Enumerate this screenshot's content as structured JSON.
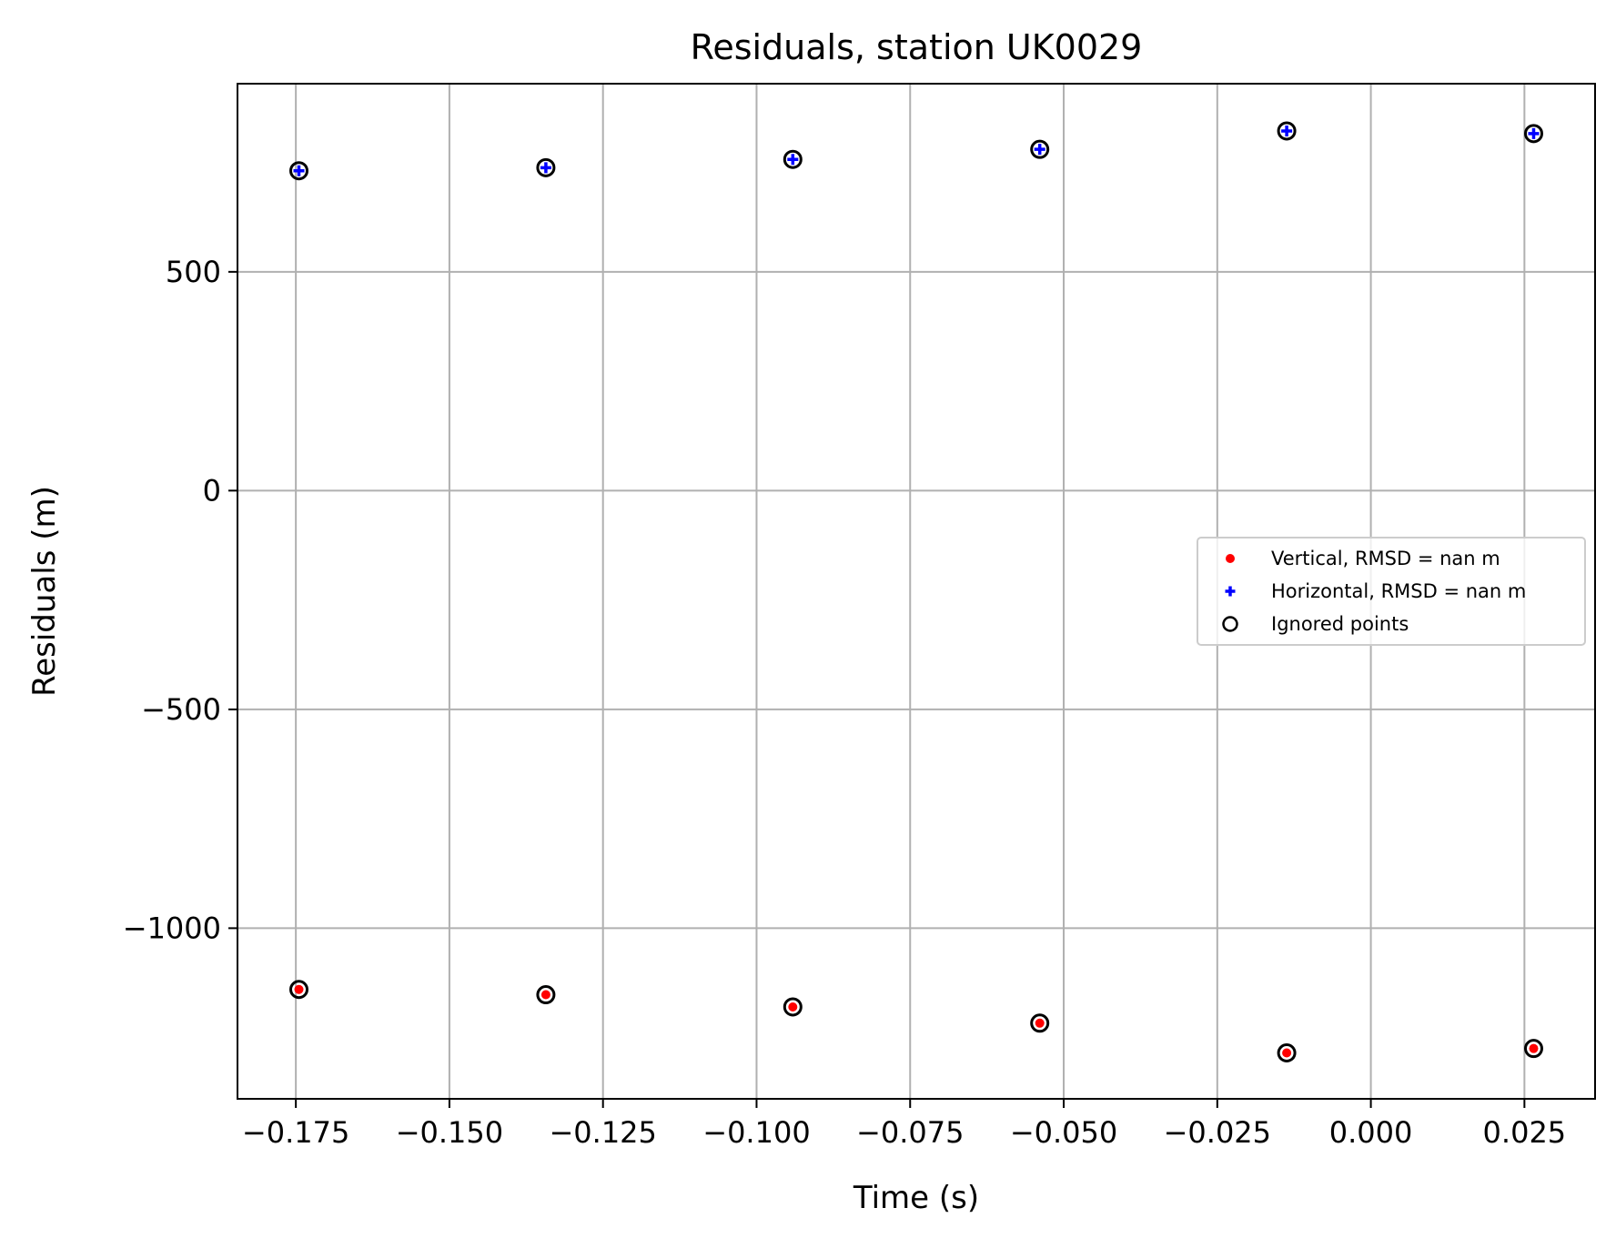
{
  "chart_data": {
    "type": "scatter",
    "title": "Residuals, station UK0029",
    "xlabel": "Time (s)",
    "ylabel": "Residuals (m)",
    "xlim": [
      -0.1845,
      0.0365
    ],
    "ylim": [
      -1390,
      930
    ],
    "xticks": [
      -0.175,
      -0.15,
      -0.125,
      -0.1,
      -0.075,
      -0.05,
      -0.025,
      0.0,
      0.025
    ],
    "xtick_labels": [
      "−0.175",
      "−0.150",
      "−0.125",
      "−0.100",
      "−0.075",
      "−0.050",
      "−0.025",
      "0.000",
      "0.025"
    ],
    "yticks": [
      500,
      0,
      -500,
      -1000
    ],
    "ytick_labels": [
      "500",
      "0",
      "−500",
      "−1000"
    ],
    "grid": true,
    "legend_position": "center-right",
    "series": [
      {
        "name": "Vertical, RMSD = nan m",
        "marker": "dot",
        "color": "#ff0000",
        "x": [
          -0.1745,
          -0.1343,
          -0.0941,
          -0.0539,
          -0.0137,
          0.0265
        ],
        "y": [
          -1140,
          -1152,
          -1180,
          -1217,
          -1285,
          -1275
        ]
      },
      {
        "name": "Horizontal, RMSD = nan m",
        "marker": "plus",
        "color": "#0000ff",
        "x": [
          -0.1745,
          -0.1343,
          -0.0941,
          -0.0539,
          -0.0137,
          0.0265
        ],
        "y": [
          731,
          738,
          757,
          780,
          822,
          816
        ]
      },
      {
        "name": "Ignored points",
        "marker": "open-circle",
        "color": "#000000",
        "x": [
          -0.1745,
          -0.1343,
          -0.0941,
          -0.0539,
          -0.0137,
          0.0265,
          -0.1745,
          -0.1343,
          -0.0941,
          -0.0539,
          -0.0137,
          0.0265
        ],
        "y": [
          731,
          738,
          757,
          780,
          822,
          816,
          -1140,
          -1152,
          -1180,
          -1217,
          -1285,
          -1275
        ]
      }
    ]
  }
}
